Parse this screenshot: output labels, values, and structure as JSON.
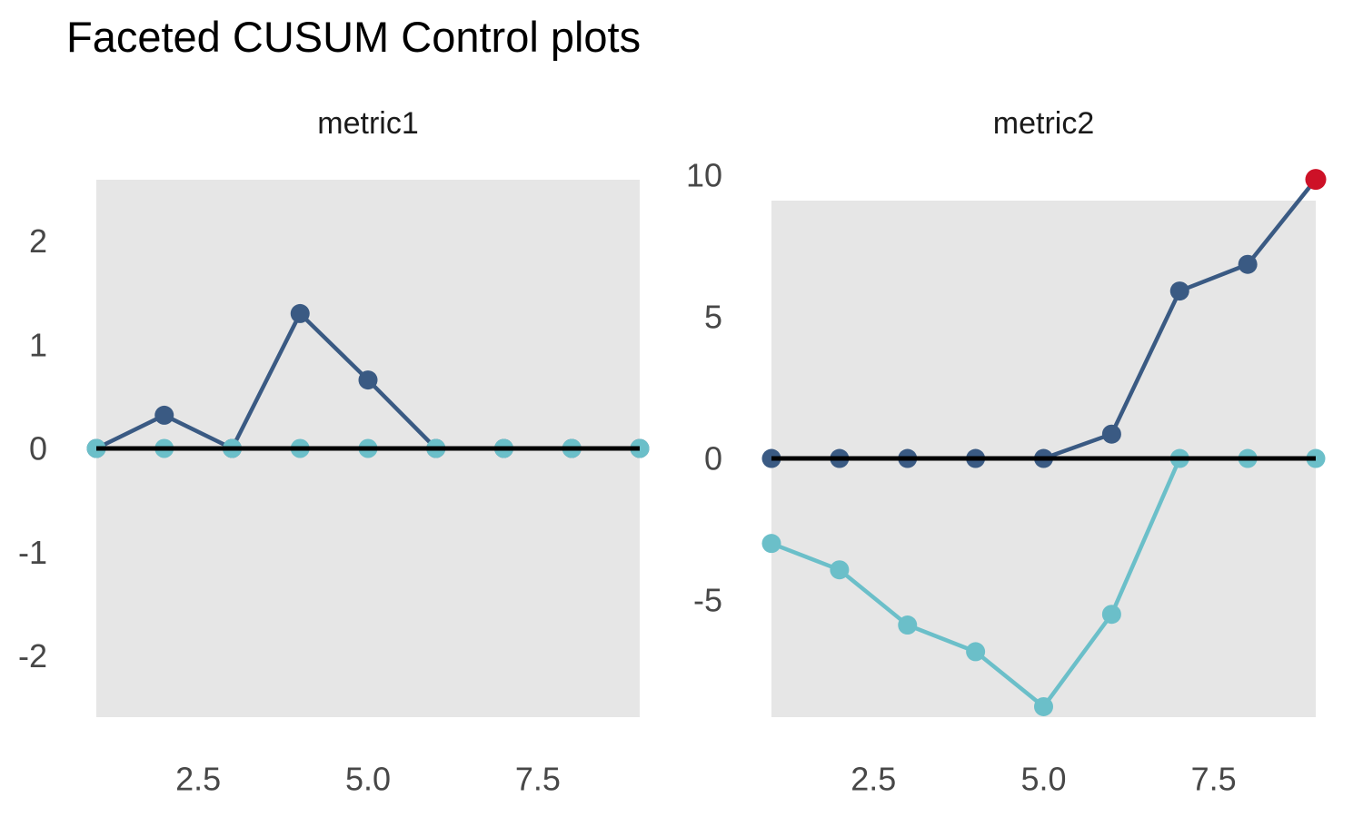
{
  "title": "Faceted CUSUM Control plots",
  "colors": {
    "background": "#FFFFFF",
    "panel": "#E6E6E6",
    "upper": "#3A5A83",
    "lower": "#6BBFC9",
    "signal": "#CD1127",
    "zero_line": "#000000",
    "axis_text": "#474747",
    "facet_title": "#1A1A1A",
    "title_text": "#000000"
  },
  "chart_data": [
    {
      "type": "line",
      "facet": "metric1",
      "x": [
        1,
        2,
        3,
        4,
        5,
        6,
        7,
        8,
        9
      ],
      "series": [
        {
          "name": "upper_cusum",
          "color_key": "upper",
          "values": [
            0,
            0.32,
            0,
            1.3,
            0.66,
            0,
            0,
            0,
            0
          ]
        },
        {
          "name": "lower_cusum",
          "color_key": "lower",
          "values": [
            0,
            0,
            0,
            0,
            0,
            0,
            0,
            0,
            0
          ]
        }
      ],
      "center_line": 0,
      "xlim": [
        1,
        9
      ],
      "ylim": [
        -2.59,
        2.59
      ],
      "xtick_values": [
        2.5,
        5,
        7.5
      ],
      "xtick_labels": [
        "2.5",
        "5.0",
        "7.5"
      ],
      "ytick_values": [
        2,
        1,
        0,
        -1,
        -2
      ],
      "ytick_labels": [
        "2",
        "1",
        "0",
        "-1",
        "-2"
      ],
      "grid": "off",
      "legend": "none",
      "signal_points": []
    },
    {
      "type": "line",
      "facet": "metric2",
      "x": [
        1,
        2,
        3,
        4,
        5,
        6,
        7,
        8,
        9
      ],
      "series": [
        {
          "name": "upper_cusum",
          "color_key": "upper",
          "values": [
            0,
            0,
            0,
            0,
            0,
            0.86,
            5.91,
            6.85,
            9.85
          ]
        },
        {
          "name": "lower_cusum",
          "color_key": "lower",
          "values": [
            -3.0,
            -3.93,
            -5.88,
            -6.82,
            -8.76,
            -5.5,
            0,
            0,
            0
          ]
        }
      ],
      "center_line": 0,
      "xlim": [
        1,
        9
      ],
      "ylim": [
        -9.13,
        9.1
      ],
      "xtick_values": [
        2.5,
        5,
        7.5
      ],
      "xtick_labels": [
        "2.5",
        "5.0",
        "7.5"
      ],
      "ytick_values": [
        10,
        5,
        0,
        -5
      ],
      "ytick_labels": [
        "10",
        "5",
        "0",
        "-5"
      ],
      "grid": "off",
      "legend": "none",
      "signal_points": [
        {
          "series": "upper_cusum",
          "index": 8,
          "color_key": "signal"
        }
      ]
    }
  ]
}
